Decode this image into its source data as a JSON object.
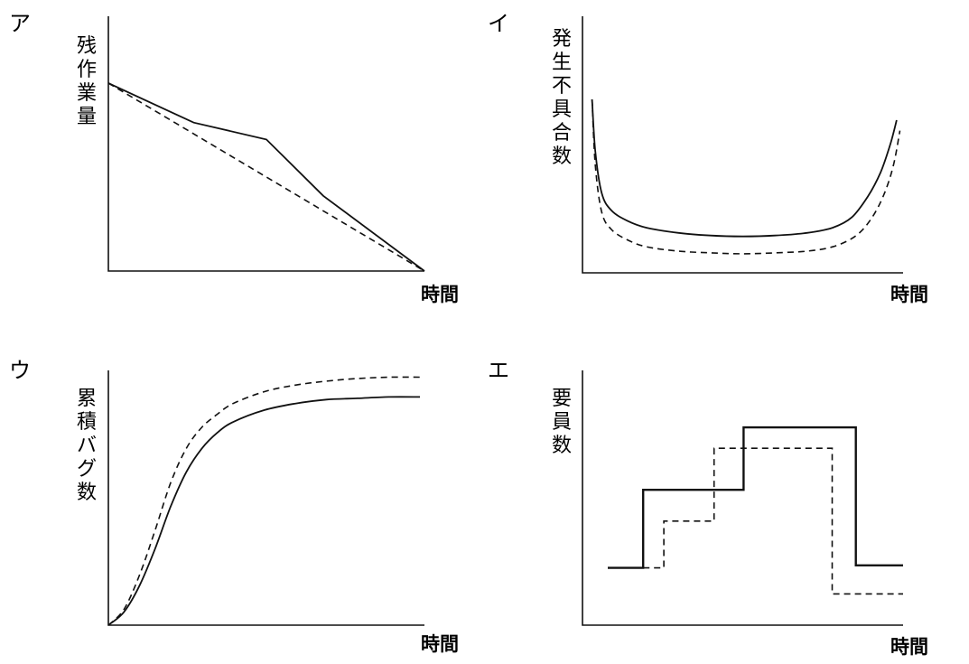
{
  "chart_data": [
    {
      "panel": "ア",
      "type": "line",
      "xlabel": "時間",
      "ylabel": "残作業量",
      "xlim": [
        0,
        100
      ],
      "ylim": [
        0,
        100
      ],
      "series": [
        {
          "style": "solid",
          "x": [
            0,
            27,
            50,
            68,
            100
          ],
          "y": [
            100,
            79,
            70,
            40,
            0
          ]
        },
        {
          "style": "dashed",
          "x": [
            0,
            100
          ],
          "y": [
            100,
            0
          ]
        }
      ]
    },
    {
      "panel": "イ",
      "type": "line",
      "xlabel": "時間",
      "ylabel": "発生不具合数",
      "xlim": [
        0,
        100
      ],
      "ylim": [
        0,
        100
      ],
      "series": [
        {
          "style": "solid",
          "x": [
            3,
            4,
            6,
            9,
            14,
            20,
            30,
            40,
            50,
            60,
            70,
            78,
            84,
            89,
            93,
            96,
            98
          ],
          "y": [
            100,
            70,
            46,
            36,
            30,
            26,
            23,
            21.5,
            21,
            21.5,
            23,
            26,
            32,
            44,
            58,
            74,
            88
          ]
        },
        {
          "style": "dashed",
          "x": [
            3,
            4,
            6,
            9,
            14,
            20,
            30,
            40,
            50,
            60,
            70,
            78,
            85,
            90,
            94,
            97,
            99
          ],
          "y": [
            100,
            62,
            35,
            25,
            19,
            15,
            12.5,
            11.5,
            11,
            11.5,
            12.5,
            15,
            21,
            31,
            45,
            62,
            82
          ]
        }
      ]
    },
    {
      "panel": "ウ",
      "type": "line",
      "xlabel": "時間",
      "ylabel": "累積バグ数",
      "xlim": [
        0,
        100
      ],
      "ylim": [
        0,
        100
      ],
      "series": [
        {
          "style": "solid",
          "x": [
            0,
            5,
            10,
            15,
            20,
            25,
            30,
            35,
            40,
            50,
            60,
            70,
            80,
            90,
            100
          ],
          "y": [
            0,
            5,
            15,
            29,
            45,
            58,
            67,
            73,
            77,
            81.5,
            84,
            85.5,
            86,
            86.5,
            86.5
          ]
        },
        {
          "style": "dashed",
          "x": [
            0,
            5,
            10,
            15,
            20,
            25,
            30,
            35,
            40,
            50,
            60,
            70,
            80,
            90,
            100
          ],
          "y": [
            0,
            6,
            19,
            36,
            54,
            67,
            75,
            80,
            84,
            88.5,
            91,
            92.5,
            93.5,
            94,
            94
          ]
        }
      ]
    },
    {
      "panel": "エ",
      "type": "line",
      "xlabel": "時間",
      "ylabel": "要員数",
      "xlim": [
        0,
        100
      ],
      "ylim": [
        0,
        100
      ],
      "series": [
        {
          "style": "solid",
          "step": true,
          "x": [
            0,
            12,
            12,
            46,
            46,
            84,
            84,
            100
          ],
          "y": [
            22,
            22,
            52,
            52,
            76,
            76,
            23,
            23
          ]
        },
        {
          "style": "dashed",
          "step": true,
          "x": [
            12,
            19,
            19,
            36,
            36,
            76,
            76,
            100
          ],
          "y": [
            22,
            22,
            40,
            40,
            68,
            68,
            12,
            12
          ]
        }
      ]
    }
  ]
}
